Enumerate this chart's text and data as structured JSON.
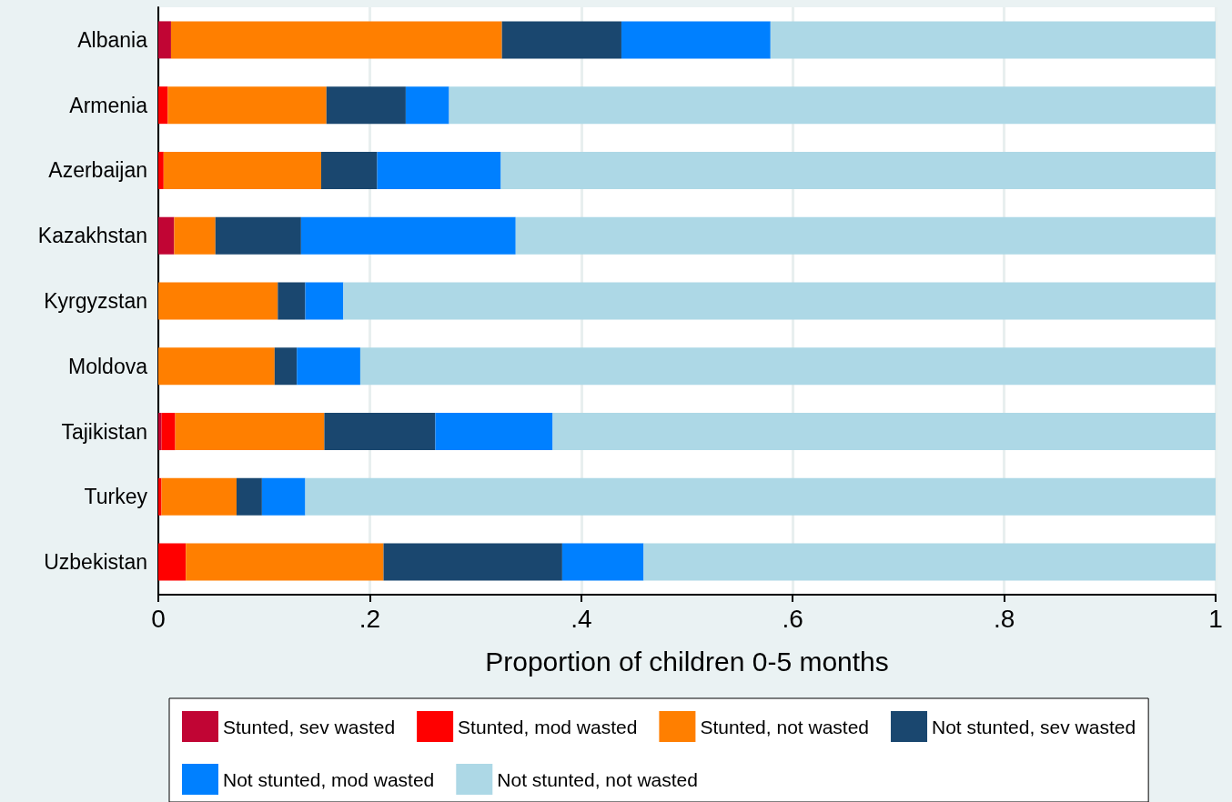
{
  "chart_data": {
    "type": "bar",
    "orientation": "horizontal",
    "stacked": true,
    "xlabel": "Proportion of children 0-5 months",
    "categories": [
      "Albania",
      "Armenia",
      "Azerbaijan",
      "Kazakhstan",
      "Kyrgyzstan",
      "Moldova",
      "Tajikistan",
      "Turkey",
      "Uzbekistan"
    ],
    "series": [
      {
        "name": "Stunted, sev wasted",
        "color": "#c10534",
        "values": [
          0.012,
          0,
          0,
          0.015,
          0,
          0,
          0.003,
          0,
          0
        ]
      },
      {
        "name": "Stunted, mod wasted",
        "color": "#ff0000",
        "values": [
          0,
          0.009,
          0.005,
          0,
          0,
          0,
          0.013,
          0.003,
          0.026
        ]
      },
      {
        "name": "Stunted, not wasted",
        "color": "#ff7f00",
        "values": [
          0.313,
          0.15,
          0.149,
          0.039,
          0.113,
          0.11,
          0.141,
          0.071,
          0.187
        ]
      },
      {
        "name": "Not stunted, sev wasted",
        "color": "#1a476f",
        "values": [
          0.113,
          0.075,
          0.053,
          0.081,
          0.026,
          0.021,
          0.105,
          0.024,
          0.169
        ]
      },
      {
        "name": "Not stunted, mod wasted",
        "color": "#0080ff",
        "values": [
          0.141,
          0.041,
          0.117,
          0.203,
          0.036,
          0.06,
          0.111,
          0.041,
          0.077
        ]
      },
      {
        "name": "Not stunted, not wasted",
        "color": "#add8e6",
        "values": [
          0.421,
          0.725,
          0.676,
          0.662,
          0.825,
          0.809,
          0.627,
          0.861,
          0.541
        ]
      }
    ],
    "xlim": [
      0,
      1
    ],
    "xticks": [
      0,
      {
        "value": 0.2,
        "label": ".2"
      },
      {
        "value": 0.4,
        "label": ".4"
      },
      {
        "value": 0.6,
        "label": ".6"
      },
      {
        "value": 0.8,
        "label": ".8"
      },
      1
    ],
    "grid": "x",
    "legend": "bottom"
  }
}
